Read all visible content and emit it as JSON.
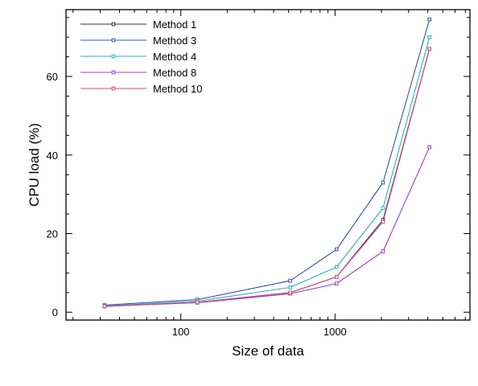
{
  "chart_data": {
    "type": "line",
    "xlabel": "Size of data",
    "ylabel": "CPU load (%)",
    "x_scale": "log",
    "xlim": [
      18,
      7500
    ],
    "ylim": [
      -2,
      77
    ],
    "x_tick_labels": [
      "100",
      "1000"
    ],
    "x_tick_values": [
      100,
      1000
    ],
    "y_ticks": [
      0,
      20,
      40,
      60
    ],
    "grid": false,
    "legend_position": "top-left",
    "x": [
      32,
      128,
      512,
      1024,
      2048,
      4096
    ],
    "series": [
      {
        "name": "Method 1",
        "color": "#333333",
        "values": [
          1.5,
          2.5,
          5.0,
          9.0,
          23.5,
          67.0
        ]
      },
      {
        "name": "Method 3",
        "color": "#3a4fb5",
        "values": [
          1.8,
          3.2,
          8.0,
          16.0,
          33.0,
          74.5
        ]
      },
      {
        "name": "Method 4",
        "color": "#2bb3b0",
        "values": [
          1.6,
          2.8,
          6.3,
          11.5,
          26.5,
          70.0
        ]
      },
      {
        "name": "Method 8",
        "color": "#9b3fd0",
        "values": [
          1.5,
          2.4,
          4.7,
          7.3,
          15.5,
          42.0
        ]
      },
      {
        "name": "Method 10",
        "color": "#d04a7a",
        "values": [
          1.5,
          2.5,
          5.0,
          9.0,
          23.0,
          67.0
        ]
      }
    ]
  }
}
